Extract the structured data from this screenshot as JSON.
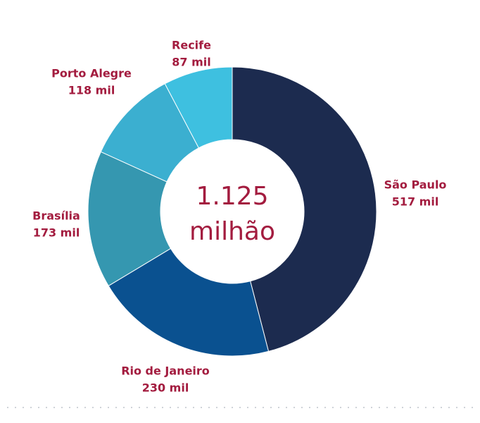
{
  "chart_data": {
    "type": "donut",
    "center_text": [
      "1.125",
      "milhão"
    ],
    "categories": [
      "São Paulo",
      "Rio de Janeiro",
      "Brasília",
      "Porto Alegre",
      "Recife"
    ],
    "values": [
      517,
      230,
      173,
      118,
      87
    ],
    "value_labels": [
      "517 mil",
      "230 mil",
      "173 mil",
      "118 mil",
      "87 mil"
    ],
    "colors": [
      "#1c2b4f",
      "#0a5190",
      "#3597b0",
      "#3bafd0",
      "#3ec0e0"
    ]
  }
}
